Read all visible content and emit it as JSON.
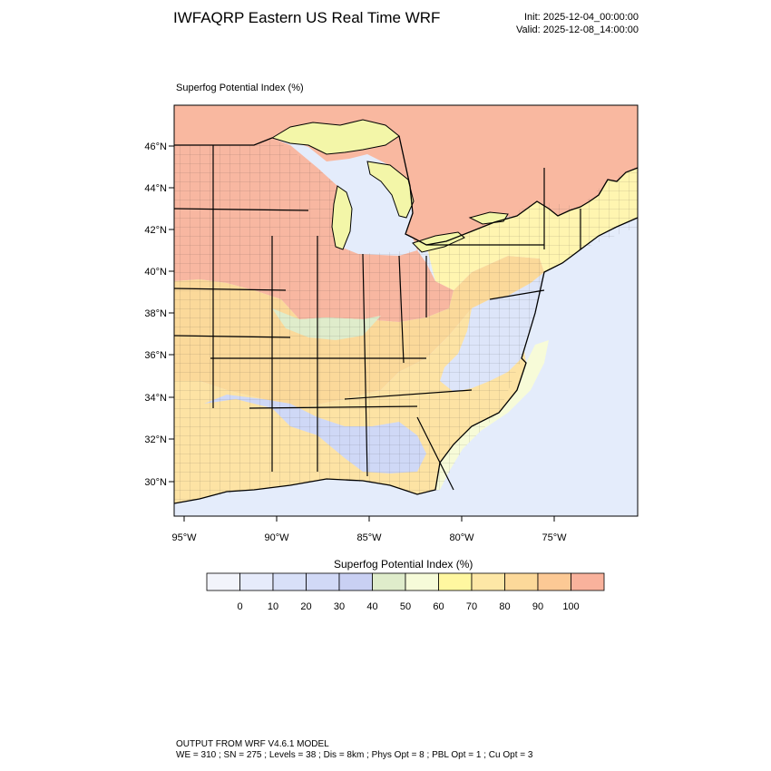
{
  "header": {
    "title": "IWFAQRP Eastern US Real Time WRF",
    "init": "Init: 2025-12-04_00:00:00",
    "valid": "Valid: 2025-12-08_14:00:00"
  },
  "panel": {
    "title": "Superfog Potential Index   (%)"
  },
  "map": {
    "lat_labels": [
      "46°N",
      "44°N",
      "42°N",
      "40°N",
      "38°N",
      "36°N",
      "34°N",
      "32°N",
      "30°N"
    ],
    "lon_labels": [
      "95°W",
      "90°W",
      "85°W",
      "80°W",
      "75°W"
    ],
    "colors": {
      "ocean": "#e4ecfb",
      "canada": "#f9b8a0",
      "land_high": "#f8b7a1",
      "land_mid": "#fbd99a",
      "land_warm": "#fde3a4",
      "land_yellow": "#fff5b0",
      "land_pale": "#f7fbd8",
      "land_green": "#dfeccb",
      "land_blue": "#cfd8f6",
      "land_lightblue": "#dde5f9",
      "lake": "#f3f6a8"
    }
  },
  "colorbar": {
    "title": "Superfog Potential Index  (%)",
    "colors": [
      "#f2f4fb",
      "#e6ebfb",
      "#d8e0f8",
      "#d1d9f6",
      "#c9d0f3",
      "#dfeccb",
      "#f6fbd9",
      "#fff7a0",
      "#fde7a6",
      "#fcd99a",
      "#fcc995",
      "#f9b29c"
    ],
    "labels": [
      "0",
      "10",
      "20",
      "30",
      "40",
      "50",
      "60",
      "70",
      "80",
      "90",
      "100"
    ]
  },
  "footer": {
    "line1": "OUTPUT FROM WRF V4.6.1 MODEL",
    "line2": "WE = 310 ; SN = 275 ; Levels = 38 ; Dis = 8km ; Phys Opt = 8 ; PBL Opt = 1 ; Cu Opt = 3"
  }
}
